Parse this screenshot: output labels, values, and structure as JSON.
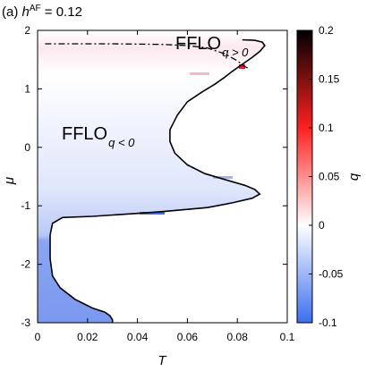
{
  "chart_data": {
    "type": "heatmap",
    "title_prefix": "(a) ",
    "title_var": "h",
    "title_sup": "AF",
    "title_value": " = 0.12",
    "xlabel": "T",
    "ylabel": "μ",
    "xlim": [
      0,
      0.1
    ],
    "ylim": [
      -3,
      2
    ],
    "xticks": [
      "0",
      "0.02",
      "0.04",
      "0.06",
      "0.08",
      "0.1"
    ],
    "yticks": [
      "-3",
      "-2",
      "-1",
      "0",
      "1",
      "2"
    ],
    "colorbar": {
      "label": "q",
      "range": [
        -0.1,
        0.2
      ],
      "ticks": [
        "-0.1",
        "-0.05",
        "0",
        "0.05",
        "0.1",
        "0.15",
        "0.2"
      ],
      "colors": {
        "min": "#3b6ef0",
        "zero": "#ffffff",
        "mid_pos": "#ff2020",
        "max": "#000000"
      }
    },
    "regions": [
      {
        "label": "FFLO",
        "sub": "q > 0"
      },
      {
        "label": "FFLO",
        "sub": "q < 0"
      }
    ],
    "boundary": [
      [
        0.082,
        1.84
      ],
      [
        0.087,
        1.83
      ],
      [
        0.09,
        1.8
      ],
      [
        0.091,
        1.74
      ],
      [
        0.089,
        1.64
      ],
      [
        0.086,
        1.54
      ],
      [
        0.082,
        1.42
      ],
      [
        0.078,
        1.3
      ],
      [
        0.075,
        1.2
      ],
      [
        0.071,
        1.08
      ],
      [
        0.066,
        0.95
      ],
      [
        0.06,
        0.78
      ],
      [
        0.056,
        0.55
      ],
      [
        0.053,
        0.3
      ],
      [
        0.053,
        0.1
      ],
      [
        0.055,
        -0.1
      ],
      [
        0.06,
        -0.3
      ],
      [
        0.067,
        -0.45
      ],
      [
        0.075,
        -0.55
      ],
      [
        0.083,
        -0.65
      ],
      [
        0.087,
        -0.72
      ],
      [
        0.089,
        -0.8
      ],
      [
        0.086,
        -0.87
      ],
      [
        0.078,
        -0.95
      ],
      [
        0.068,
        -1.03
      ],
      [
        0.05,
        -1.1
      ],
      [
        0.04,
        -1.13
      ],
      [
        0.022,
        -1.18
      ],
      [
        0.01,
        -1.2
      ],
      [
        0.006,
        -1.3
      ],
      [
        0.005,
        -1.5
      ],
      [
        0.005,
        -1.9
      ],
      [
        0.006,
        -2.2
      ],
      [
        0.009,
        -2.4
      ],
      [
        0.015,
        -2.6
      ],
      [
        0.022,
        -2.75
      ],
      [
        0.027,
        -2.82
      ],
      [
        0.029,
        -2.88
      ],
      [
        0.03,
        -2.95
      ],
      [
        0.03,
        -3.0
      ]
    ],
    "dashed_line": [
      [
        0.003,
        1.77
      ],
      [
        0.03,
        1.77
      ],
      [
        0.05,
        1.76
      ],
      [
        0.06,
        1.74
      ],
      [
        0.068,
        1.7
      ],
      [
        0.075,
        1.6
      ],
      [
        0.08,
        1.48
      ],
      [
        0.083,
        1.38
      ],
      [
        0.085,
        1.34
      ]
    ]
  }
}
